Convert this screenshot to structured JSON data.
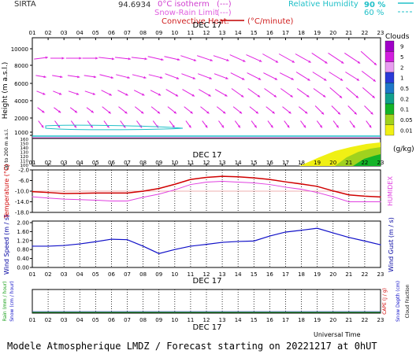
{
  "header": {
    "site": "SIRTA",
    "coords": "94.6934",
    "iso_label": "0°C isotherm",
    "iso_sym": "(---)",
    "snow_label": "Snow-Rain Limit",
    "snow_sym": "(---)",
    "conv_label": "Convective Heat.",
    "conv_unit": "(°C/minute)",
    "rh_label": "Relative Humidity",
    "rh90": "90 %",
    "rh60": "60 %"
  },
  "date_label": "DEC 17",
  "footer": {
    "universal_time": "Universal Time",
    "model": "Modele Atmospherique LMDZ / Forecast starting on 20221217 at 0hUT"
  },
  "hours": [
    "01",
    "02",
    "03",
    "04",
    "05",
    "06",
    "07",
    "08",
    "09",
    "10",
    "11",
    "12",
    "13",
    "14",
    "15",
    "16",
    "17",
    "18",
    "19",
    "20",
    "21",
    "22",
    "23"
  ],
  "upper_hours": [
    "01",
    "02",
    "03",
    "04",
    "05",
    "06",
    "07",
    "08",
    "09",
    "10",
    "11",
    "12",
    "13",
    "14",
    "15",
    "16",
    "17",
    "18",
    "19",
    "20",
    "21",
    "22",
    "23"
  ],
  "clouds_legend": {
    "title": "Clouds",
    "unit": "(g/kg)",
    "labels": [
      "9",
      "5",
      "2",
      "1",
      "0.5",
      "0.2",
      "0.1",
      "0.05",
      "0.01"
    ],
    "colors": [
      "#a000c8",
      "#d21ede",
      "#e89cf0",
      "#2a3ad8",
      "#1e78c8",
      "#12a08c",
      "#14b428",
      "#a0d21e",
      "#f0f014"
    ]
  },
  "panels": {
    "height_axis": {
      "title": "Height  (m a.s.l.)",
      "ticks": [
        "1000",
        "2000",
        "4000",
        "6000",
        "8000",
        "10000"
      ]
    },
    "lowlevel_axis": {
      "title": "Up to 200 m a.s.l.",
      "ticks": [
        "100",
        "110",
        "120",
        "130",
        "140",
        "150",
        "160"
      ]
    },
    "temperature_axis": {
      "title": "Temperature  (°C)",
      "ticks": [
        "-18.0",
        "-14.0",
        "-10.0",
        "-6.0",
        "-2.0"
      ],
      "right_title": "HUMIDEX"
    },
    "wind_axis": {
      "title": "Wind Speed  (m / s)",
      "ticks": [
        "0.00",
        "0.40",
        "0.80",
        "1.20",
        "1.60",
        "2.00"
      ],
      "right_title": "Wind Gust  (m / s)"
    },
    "rain_axis": {
      "title_rain": "Rain (mm / hour)",
      "title_snow": "Snow (cm / hour)",
      "right1": "CAPE (J / g)",
      "right2": "Snow Depth (cm)",
      "right3": "Cloud Fraction"
    }
  },
  "chart_data": [
    {
      "type": "line",
      "title": "Temperature",
      "ylabel": "Temperature (°C)",
      "ylim": [
        -18.0,
        -2.0
      ],
      "x": [
        "01",
        "02",
        "03",
        "04",
        "05",
        "06",
        "07",
        "08",
        "09",
        "10",
        "11",
        "12",
        "13",
        "14",
        "15",
        "16",
        "17",
        "18",
        "19",
        "20",
        "21",
        "22",
        "23"
      ],
      "series": [
        {
          "name": "Temperature",
          "color": "#d00000",
          "values": [
            -10.2,
            -10.5,
            -10.9,
            -10.8,
            -10.7,
            -10.7,
            -10.7,
            -10.0,
            -9.0,
            -7.4,
            -5.6,
            -4.8,
            -4.4,
            -4.6,
            -5.0,
            -5.6,
            -6.5,
            -7.3,
            -8.2,
            -9.9,
            -11.4,
            -11.9,
            -12.2
          ]
        },
        {
          "name": "HUMIDEX",
          "color": "#e040e0",
          "values": [
            -12.1,
            -12.6,
            -13.0,
            -13.2,
            -13.4,
            -13.7,
            -13.7,
            -12.3,
            -11.1,
            -9.5,
            -7.5,
            -6.6,
            -6.3,
            -6.6,
            -6.9,
            -7.5,
            -8.5,
            -9.3,
            -10.5,
            -12.1,
            -14.0,
            -14.0,
            -14.0
          ]
        }
      ]
    },
    {
      "type": "line",
      "title": "Wind Speed",
      "ylabel": "Wind Speed (m / s)",
      "ylim": [
        0,
        2.0
      ],
      "x": [
        "01",
        "02",
        "03",
        "04",
        "05",
        "06",
        "07",
        "08",
        "09",
        "10",
        "11",
        "12",
        "13",
        "14",
        "15",
        "16",
        "17",
        "18",
        "19",
        "20",
        "21",
        "22",
        "23"
      ],
      "series": [
        {
          "name": "Wind Speed",
          "color": "#1010c8",
          "values": [
            0.95,
            0.95,
            0.98,
            1.05,
            1.15,
            1.26,
            1.24,
            0.95,
            0.62,
            0.8,
            0.95,
            1.03,
            1.12,
            1.16,
            1.18,
            1.4,
            1.58,
            1.66,
            1.75,
            1.54,
            1.34,
            1.18,
            1.01
          ]
        }
      ]
    },
    {
      "type": "area",
      "title": "Clouds",
      "unit": "g/kg",
      "x": [
        "17",
        "18",
        "19",
        "20",
        "21",
        "22",
        "23"
      ],
      "values": [
        0.0,
        0.01,
        0.02,
        0.05,
        0.1,
        0.1,
        0.1
      ]
    },
    {
      "type": "line",
      "title": "Rain / Snow",
      "ylabel": "Rain (mm / hour)",
      "x": [
        "01",
        "02",
        "03",
        "04",
        "05",
        "06",
        "07",
        "08",
        "09",
        "10",
        "11",
        "12",
        "13",
        "14",
        "15",
        "16",
        "17",
        "18",
        "19",
        "20",
        "21",
        "22",
        "23"
      ],
      "series": [
        {
          "name": "Rain",
          "color": "#18a018",
          "values": [
            0,
            0,
            0,
            0,
            0,
            0,
            0,
            0,
            0,
            0,
            0,
            0,
            0,
            0,
            0,
            0,
            0,
            0,
            0,
            0,
            0,
            0,
            0
          ]
        }
      ]
    }
  ]
}
